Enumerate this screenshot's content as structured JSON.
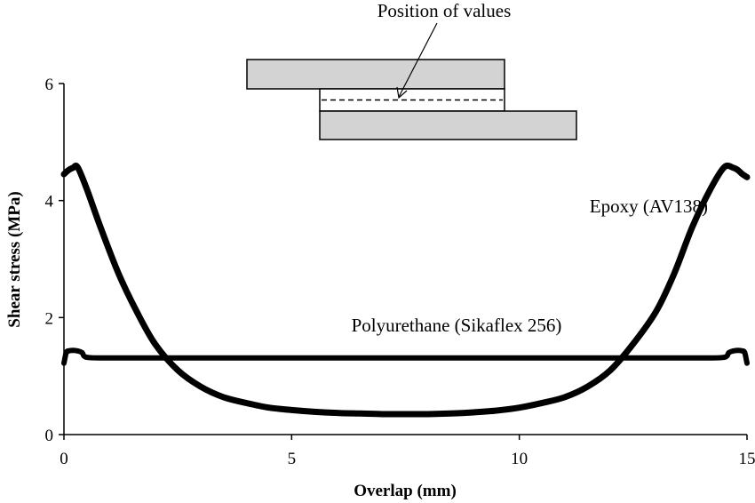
{
  "chart_data": {
    "type": "line",
    "title": "",
    "xlabel": "Overlap (mm)",
    "ylabel": "Shear stress (MPa)",
    "xlim": [
      0,
      15
    ],
    "ylim": [
      0,
      6
    ],
    "xticks": [
      0,
      5,
      10,
      15
    ],
    "yticks": [
      0,
      2,
      4,
      6
    ],
    "grid": false,
    "line_color": "#000000",
    "series": [
      {
        "name": "Epoxy (AV138)",
        "x": [
          0,
          0.1,
          0.2,
          0.3,
          0.5,
          0.8,
          1.2,
          1.6,
          2,
          2.5,
          3,
          3.5,
          4,
          4.5,
          5,
          5.5,
          6,
          6.5,
          7,
          7.5,
          8,
          8.5,
          9,
          9.5,
          10,
          10.5,
          11,
          11.5,
          12,
          12.5,
          13,
          13.4,
          13.8,
          14.2,
          14.5,
          14.7,
          14.8,
          14.9,
          15
        ],
        "y": [
          4.45,
          4.52,
          4.56,
          4.57,
          4.2,
          3.55,
          2.75,
          2.1,
          1.55,
          1.1,
          0.82,
          0.64,
          0.54,
          0.46,
          0.42,
          0.39,
          0.37,
          0.36,
          0.35,
          0.35,
          0.35,
          0.36,
          0.38,
          0.41,
          0.46,
          0.54,
          0.64,
          0.82,
          1.1,
          1.55,
          2.1,
          2.75,
          3.55,
          4.2,
          4.57,
          4.56,
          4.52,
          4.45,
          4.4
        ]
      },
      {
        "name": "Polyurethane (Sikaflex 256)",
        "x": [
          0,
          0.05,
          0.1,
          0.2,
          0.3,
          0.4,
          0.5,
          1,
          2,
          3,
          4,
          5,
          6,
          7,
          8,
          9,
          10,
          11,
          12,
          13,
          14,
          14.5,
          14.6,
          14.7,
          14.8,
          14.9,
          14.95,
          15
        ],
        "y": [
          1.22,
          1.4,
          1.43,
          1.44,
          1.43,
          1.4,
          1.32,
          1.31,
          1.31,
          1.31,
          1.31,
          1.31,
          1.31,
          1.31,
          1.31,
          1.31,
          1.31,
          1.31,
          1.31,
          1.31,
          1.31,
          1.32,
          1.4,
          1.43,
          1.44,
          1.43,
          1.4,
          1.22
        ]
      }
    ]
  },
  "inset": {
    "label": "Position of values"
  }
}
